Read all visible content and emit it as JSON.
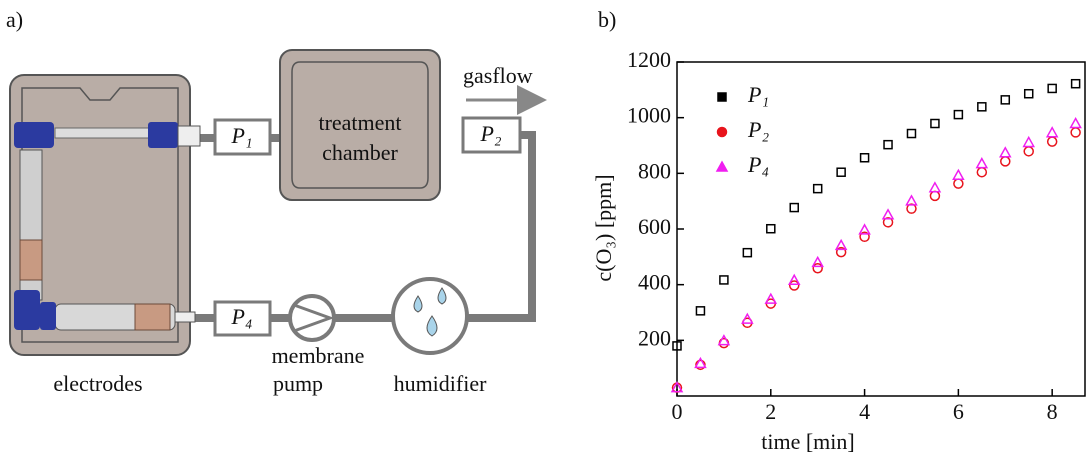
{
  "diagram": {
    "label": "a)",
    "gasflow": "gasflow",
    "chamber": [
      "treatment",
      "chamber"
    ],
    "p1": "P₁",
    "p2": "P₂",
    "p4": "P₄",
    "pump": [
      "membrane",
      "pump"
    ],
    "humidifier": "humidifier",
    "electrodes": "electrodes"
  },
  "chart_data": {
    "type": "scatter",
    "label": "b)",
    "xlabel": "time [min]",
    "ylabel": "c(O₃) [ppm]",
    "x": [
      0,
      0.5,
      1,
      1.5,
      2,
      2.5,
      3,
      3.5,
      4,
      4.5,
      5,
      5.5,
      6,
      6.5,
      7,
      7.5,
      8,
      8.5
    ],
    "series": [
      {
        "name": "P₁",
        "color": "#000000",
        "marker": "square",
        "values": [
          180,
          306,
          417,
          515,
          601,
          677,
          745,
          804,
          856,
          903,
          943,
          979,
          1011,
          1039,
          1064,
          1086,
          1105,
          1122
        ]
      },
      {
        "name": "P₂",
        "color": "#e8141c",
        "marker": "circle",
        "values": [
          30,
          112,
          190,
          263,
          332,
          397,
          459,
          517,
          572,
          624,
          673,
          719,
          763,
          804,
          843,
          879,
          914,
          947
        ]
      },
      {
        "name": "P₄",
        "color": "#f01ef0",
        "marker": "triangle",
        "values": [
          30,
          117,
          199,
          276,
          348,
          416,
          480,
          541,
          597,
          651,
          701,
          748,
          793,
          835,
          874,
          911,
          946,
          979
        ]
      }
    ],
    "xlim": [
      0,
      8.7
    ],
    "ylim": [
      0,
      1200
    ],
    "xticks": [
      0,
      2,
      4,
      6,
      8
    ],
    "yticks": [
      200,
      400,
      600,
      800,
      1000,
      1200
    ],
    "grid": false,
    "legend": "upper left"
  }
}
